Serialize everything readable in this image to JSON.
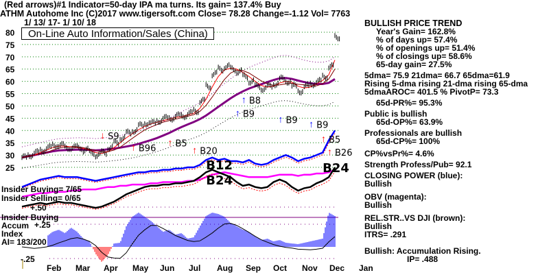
{
  "header": {
    "line1": "(Red arrows)#1 Indicator=50-day IPA ma turns. Its gain= 137.4% Buy",
    "line2": "ATHM   Autohome Inc  (C)2017 www.tigersoft.com    Close=  78.28  Change=-1.12 Vol= 7763",
    "line3": "1/ 13/ 17- 1/ 10/ 18",
    "box_title": "On-Line Auto Information/Sales (China)"
  },
  "side": {
    "trend": "BULLISH PRICE TREND",
    "years_gain": "Year's Gain= 162.8%",
    "days_up": "% of days up= 57.4%",
    "openings_up": "% of openings up= 51.4%",
    "closings_up": "% of closings up= 58.6%",
    "gain65": "65-day gain= 27.5%",
    "dma": "5dma= 75.9 21dma= 66.7 65dma=61.9",
    "rising": "Rising 5-dma rising 21-dma rising 65-dma",
    "aroc": "5dmaAROC= 401.5 %  PivotP= 73.3",
    "pr": "65d-PR%= 95.3%",
    "public": "Public is bullish",
    "op": "65d-OP%= 63.9%",
    "pros": "Professionals are bullish",
    "cp": "65d-CP%= 100%",
    "cpvspr": "CP%vsPr%=  4.6%",
    "strength": "Strength Profess/Pub= 92.1",
    "closing_power": "CLOSING POWER (blue):",
    "closing_power_v": "Bullish",
    "obv": "OBV (magenta):",
    "obv_v": "Bullish",
    "relstr": "REL.STR..VS DJI (brown):",
    "relstr_v": "Bullish",
    "itrs": "ITRS= .291",
    "accum": "Bullish: Accumulation Rising.",
    "ip": "IP=  .488"
  },
  "insider": {
    "buying": "Insider Buying= 7/65",
    "selling": "Insider Selling= 0/65",
    "buying_label": "Insider Buying",
    "accum1": "Accum",
    "accum2": "Index",
    "ai": "AI= 183/200"
  },
  "colors": {
    "price": "#000000",
    "cp": "#0000ff",
    "obv": "#ff00ff",
    "relstr": "#000000",
    "ma65": "#800080",
    "ma21": "#800000",
    "ma5": "#ff0000",
    "grid": "#008000",
    "accum_pos": "#0000ff",
    "accum_neg": "#ff0000"
  },
  "chart_data": {
    "type": "line",
    "title": "ATHM",
    "x_labels": [
      "Feb",
      "Mar",
      "Apr",
      "May",
      "Jun",
      "Jul",
      "Aug",
      "Sep",
      "Oct",
      "Nov",
      "Dec",
      "Jan"
    ],
    "y_ticks": [
      80,
      75,
      70,
      65,
      60,
      55,
      50,
      45,
      40,
      35,
      30,
      25
    ],
    "ylim": [
      25,
      80
    ],
    "grid": true,
    "price_weekly": [
      29,
      30,
      31,
      32,
      33,
      34,
      34,
      33,
      33,
      33,
      32,
      31,
      30,
      31,
      33,
      35,
      37,
      39,
      40,
      42,
      43,
      43,
      44,
      45,
      45,
      46,
      46,
      47,
      48,
      52,
      58,
      63,
      65,
      66,
      65,
      64,
      62,
      60,
      58,
      57,
      58,
      59,
      61,
      60,
      58,
      56,
      58,
      59,
      60,
      62,
      66,
      78
    ],
    "closing_power": [
      17,
      18,
      19,
      20,
      20.5,
      21,
      21.5,
      21,
      21,
      21,
      20.5,
      20,
      19.5,
      20,
      20.5,
      21,
      21.5,
      22,
      22.5,
      23,
      23,
      23.5,
      23.5,
      24,
      24,
      24.5,
      24.5,
      25,
      25,
      26,
      28,
      29,
      28,
      28.5,
      27.5,
      27.5,
      27,
      28,
      26.5,
      26,
      26.5,
      28,
      29,
      30,
      29,
      27.5,
      28.5,
      29,
      30,
      31,
      36,
      40
    ],
    "obv": [
      13,
      13.5,
      14,
      14.5,
      14.5,
      15,
      15,
      15,
      15.5,
      15.5,
      16,
      16,
      16,
      16.5,
      17,
      17,
      17.5,
      17.5,
      18,
      18,
      18,
      18.5,
      18.5,
      19,
      19,
      19,
      19,
      19.5,
      19.5,
      20,
      21,
      22,
      22.5,
      23,
      22.5,
      22,
      21.5,
      21,
      21,
      21,
      21,
      21.5,
      22,
      22,
      22,
      21.5,
      22,
      22,
      22.5,
      22.5,
      23,
      24
    ],
    "relstr": [
      9,
      9.5,
      10,
      10.5,
      10,
      10.5,
      11,
      10.5,
      10.5,
      10,
      9.5,
      9,
      8.5,
      9,
      10,
      11,
      12.5,
      14,
      15,
      16,
      17,
      17.5,
      17.5,
      18,
      18,
      18.5,
      18.5,
      19,
      19.5,
      21,
      23,
      24,
      23,
      22,
      21,
      19,
      17.5,
      18,
      17,
      16.5,
      17,
      19,
      20,
      19,
      17,
      15.5,
      16.5,
      17,
      18.5,
      19.5,
      21,
      25
    ],
    "insider_buying_line": 0.35,
    "accum_ylim": [
      -0.25,
      0.5
    ],
    "accum_ticks": [
      "+.50",
      "+.25",
      "-.25"
    ],
    "accum_weekly": [
      0.1,
      0.08,
      0.05,
      0.12,
      0.15,
      0.22,
      0.25,
      0.2,
      0.28,
      0.22,
      0.12,
      0.08,
      -0.1,
      -0.22,
      -0.12,
      0.05,
      0.06,
      0.3,
      0.44,
      0.5,
      0.44,
      0.38,
      0.3,
      0.22,
      0.25,
      0.18,
      0.2,
      0.12,
      0.14,
      0.3,
      0.45,
      0.5,
      0.48,
      0.44,
      0.35,
      0.3,
      0.25,
      0.22,
      0.15,
      0.1,
      0.12,
      0.08,
      0.1,
      0.06,
      0.05,
      0.04,
      0.06,
      0.08,
      0.1,
      0.12,
      0.5,
      0.45
    ],
    "annotations": [
      {
        "text": "S9",
        "week": 14,
        "value": 36.5
      },
      {
        "text": "B96",
        "week": 19,
        "value": 31.5
      },
      {
        "text": "B5",
        "week": 25,
        "value": 33.5
      },
      {
        "text": "B20",
        "week": 29,
        "value": 30.5
      },
      {
        "text": "B12",
        "week": 30,
        "value": 27.5,
        "big": true
      },
      {
        "text": "B24",
        "week": 30,
        "value": 23,
        "big": true
      },
      {
        "text": "B8",
        "week": 37,
        "value": 51
      },
      {
        "text": "B9",
        "week": 36,
        "value": 45.5
      },
      {
        "text": "B9",
        "week": 43,
        "value": 43
      },
      {
        "text": "B9",
        "week": 48,
        "value": 41
      },
      {
        "text": "B5",
        "week": 50,
        "value": 46
      },
      {
        "text": "B26",
        "week": 51,
        "value": 41.5
      },
      {
        "text": "B24",
        "week": 49,
        "value": 34,
        "big": true
      }
    ]
  }
}
